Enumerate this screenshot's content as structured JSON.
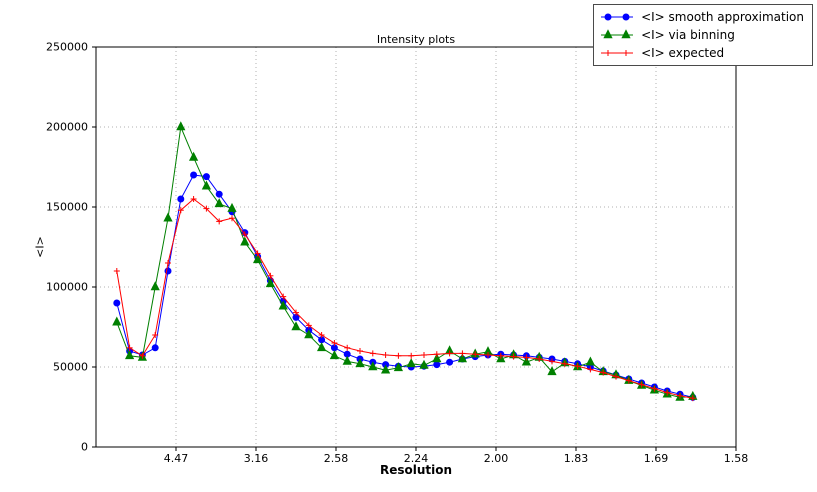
{
  "chart_data": {
    "type": "line",
    "title": "Intensity plots",
    "xlabel": "Resolution",
    "ylabel": "<I>",
    "xlim": [
      0,
      0.4
    ],
    "ylim": [
      0,
      250000
    ],
    "grid": "dotted",
    "legend_position": "upper-right-outside",
    "x_ticks": {
      "positions": [
        0.05,
        0.1,
        0.15,
        0.2,
        0.25,
        0.3,
        0.35,
        0.4
      ],
      "labels": [
        "4.47",
        "3.16",
        "2.58",
        "2.24",
        "2.00",
        "1.83",
        "1.69",
        "1.58"
      ]
    },
    "y_ticks": {
      "positions": [
        0,
        50000,
        100000,
        150000,
        200000,
        250000
      ],
      "labels": [
        "0",
        "50000",
        "100000",
        "150000",
        "200000",
        "250000"
      ]
    },
    "x": [
      0.013,
      0.021,
      0.029,
      0.037,
      0.045,
      0.053,
      0.061,
      0.069,
      0.077,
      0.085,
      0.093,
      0.101,
      0.109,
      0.117,
      0.125,
      0.133,
      0.141,
      0.149,
      0.157,
      0.165,
      0.173,
      0.181,
      0.189,
      0.197,
      0.205,
      0.213,
      0.221,
      0.229,
      0.237,
      0.245,
      0.253,
      0.261,
      0.269,
      0.277,
      0.285,
      0.293,
      0.301,
      0.309,
      0.317,
      0.325,
      0.333,
      0.341,
      0.349,
      0.357,
      0.365,
      0.373
    ],
    "series": [
      {
        "name": "<I> smooth approximation",
        "color": "#0000ff",
        "marker": "circle",
        "values": [
          90000,
          60000,
          57500,
          62000,
          110000,
          155000,
          170000,
          169000,
          158000,
          147000,
          134000,
          119000,
          104000,
          91000,
          81000,
          73000,
          67000,
          62000,
          58000,
          55000,
          53000,
          51500,
          50500,
          50000,
          50500,
          51500,
          53000,
          55000,
          56500,
          57500,
          58000,
          57500,
          57000,
          56000,
          55000,
          53500,
          52000,
          50000,
          47500,
          45000,
          42500,
          40000,
          37500,
          35000,
          33000,
          31000
        ]
      },
      {
        "name": "<I> via binning",
        "color": "#008000",
        "marker": "triangle",
        "values": [
          78000,
          57000,
          56000,
          100000,
          143000,
          200000,
          181000,
          163000,
          152000,
          149000,
          128000,
          117000,
          102000,
          88000,
          75000,
          70000,
          62000,
          57000,
          53500,
          52000,
          50000,
          48000,
          49500,
          52000,
          51000,
          55000,
          60000,
          55000,
          58000,
          59500,
          55000,
          57500,
          53000,
          56000,
          47000,
          52500,
          50000,
          53000,
          47000,
          45000,
          41500,
          38500,
          35500,
          33000,
          31000,
          31500
        ]
      },
      {
        "name": "<I> expected",
        "color": "#ff0000",
        "marker": "plus",
        "values": [
          110000,
          62000,
          57000,
          70000,
          115000,
          148000,
          155000,
          149000,
          141000,
          143000,
          133000,
          121000,
          107000,
          94000,
          84000,
          76000,
          70000,
          65000,
          62000,
          60000,
          58500,
          57500,
          57000,
          57000,
          57500,
          58000,
          58500,
          58500,
          58000,
          57500,
          57000,
          56500,
          56000,
          55000,
          53500,
          52000,
          50500,
          48500,
          46500,
          44000,
          41500,
          39000,
          36500,
          34000,
          32000,
          30500
        ]
      }
    ]
  }
}
